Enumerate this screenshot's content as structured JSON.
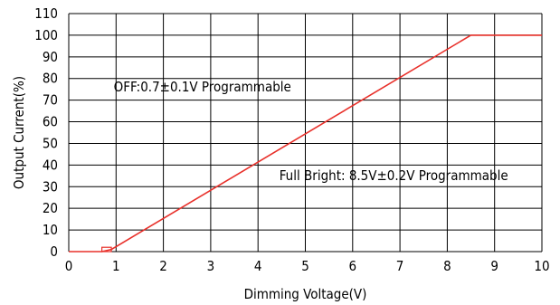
{
  "chart_data": {
    "type": "line",
    "xlabel": "Dimming Voltage(V)",
    "ylabel": "Output Current(%)",
    "xlim": [
      0,
      10
    ],
    "ylim": [
      0,
      110
    ],
    "x_ticks": [
      "0",
      "1",
      "2",
      "3",
      "4",
      "5",
      "6",
      "7",
      "8",
      "9",
      "10"
    ],
    "y_ticks": [
      "0",
      "10",
      "20",
      "30",
      "40",
      "50",
      "60",
      "70",
      "80",
      "90",
      "100",
      "110"
    ],
    "grid": true,
    "series": [
      {
        "color": "#e8302a",
        "x": [
          0,
          0.7,
          0.9,
          8.5,
          10
        ],
        "y": [
          0,
          0,
          1,
          100,
          100
        ]
      }
    ],
    "off_marker": {
      "x": [
        0.7,
        0.9
      ],
      "y": [
        0,
        2
      ]
    },
    "annotations": [
      {
        "text": "OFF:0.7±0.1V Programmable",
        "x": 0.95,
        "y": 74
      },
      {
        "text": "Full Bright: 8.5V±0.2V Programmable",
        "x": 4.45,
        "y": 33
      }
    ]
  }
}
